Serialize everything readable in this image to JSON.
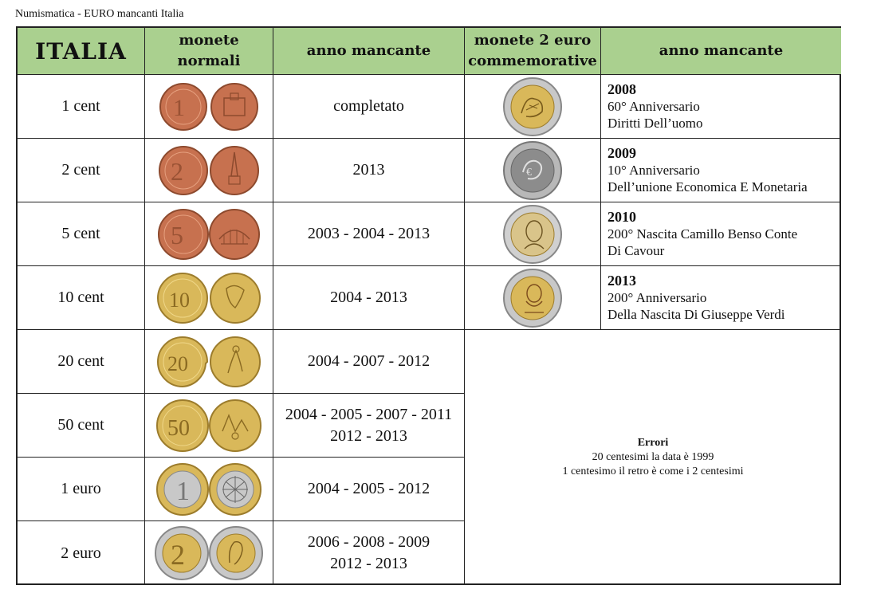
{
  "document_title": "Numismatica - EURO mancanti Italia",
  "headers": {
    "country": "ITALIA",
    "normal_line1": "monete",
    "normal_line2": "normali",
    "missing_year": "anno mancante",
    "comm_line1": "monete 2 euro",
    "comm_line2": "commemorative",
    "comm_missing_year": "anno mancante"
  },
  "rows": [
    {
      "denomination": "1 cent",
      "missing_line1": "completato",
      "missing_line2": ""
    },
    {
      "denomination": "2 cent",
      "missing_line1": "2013",
      "missing_line2": ""
    },
    {
      "denomination": "5 cent",
      "missing_line1": "2003 - 2004 - 2013",
      "missing_line2": ""
    },
    {
      "denomination": "10 cent",
      "missing_line1": "2004 - 2013",
      "missing_line2": ""
    },
    {
      "denomination": "20 cent",
      "missing_line1": "2004 - 2007 - 2012",
      "missing_line2": ""
    },
    {
      "denomination": "50 cent",
      "missing_line1": "2004 - 2005 - 2007 - 2011",
      "missing_line2": "2012 - 2013"
    },
    {
      "denomination": "1 euro",
      "missing_line1": "2004 - 2005 - 2012",
      "missing_line2": ""
    },
    {
      "denomination": "2 euro",
      "missing_line1": "2006 - 2008 - 2009",
      "missing_line2": "2012 - 2013"
    }
  ],
  "commemoratives": [
    {
      "year": "2008",
      "line1": "60° Anniversario",
      "line2": "Diritti Dell’uomo"
    },
    {
      "year": "2009",
      "line1": "10° Anniversario",
      "line2": "Dell’unione Economica E Monetaria"
    },
    {
      "year": "2010",
      "line1": "200° Nascita Camillo Benso Conte",
      "line2": "Di Cavour"
    },
    {
      "year": "2013",
      "line1": "200° Anniversario",
      "line2": "Della Nascita Di Giuseppe Verdi"
    }
  ],
  "errors": {
    "title": "Errori",
    "line1": "20 centesimi la data è 1999",
    "line2": "1 centesimo il retro è come i 2 centesimi"
  },
  "colors": {
    "header_bg": "#aad08f",
    "copper": "#c7714f",
    "nordic_gold": "#d9b85a",
    "bimetal_silver": "#c8c8c8"
  }
}
